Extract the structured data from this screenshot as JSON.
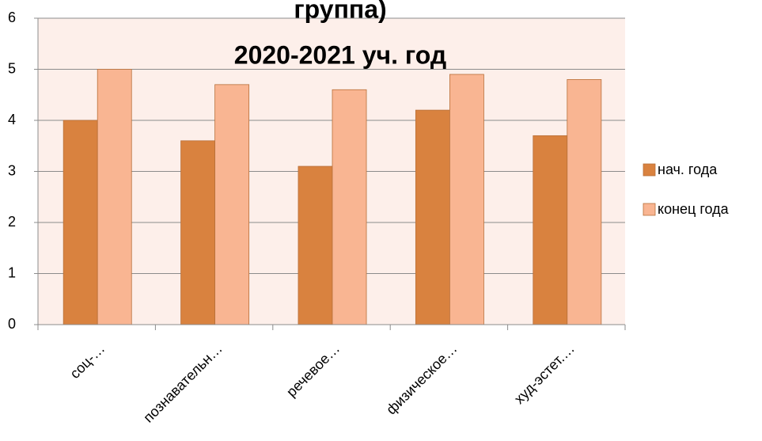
{
  "chart_data": {
    "type": "bar",
    "title": [
      "группа)",
      "2020-2021 уч. год"
    ],
    "categories": [
      "соц-…",
      "познавательн…",
      "речевое…",
      "физическое…",
      "худ-эстет.…"
    ],
    "series": [
      {
        "name": "нач. года",
        "color": "#d9823f",
        "values": [
          4,
          3.6,
          3.1,
          4.2,
          3.7
        ]
      },
      {
        "name": "конец года",
        "color": "#f9b592",
        "values": [
          5,
          4.7,
          4.6,
          4.9,
          4.8
        ]
      }
    ],
    "ylim": [
      0,
      6
    ],
    "yticks": [
      0,
      1,
      2,
      3,
      4,
      5,
      6
    ],
    "grid": true,
    "legend": "right",
    "plot_background": "#fdefea"
  }
}
